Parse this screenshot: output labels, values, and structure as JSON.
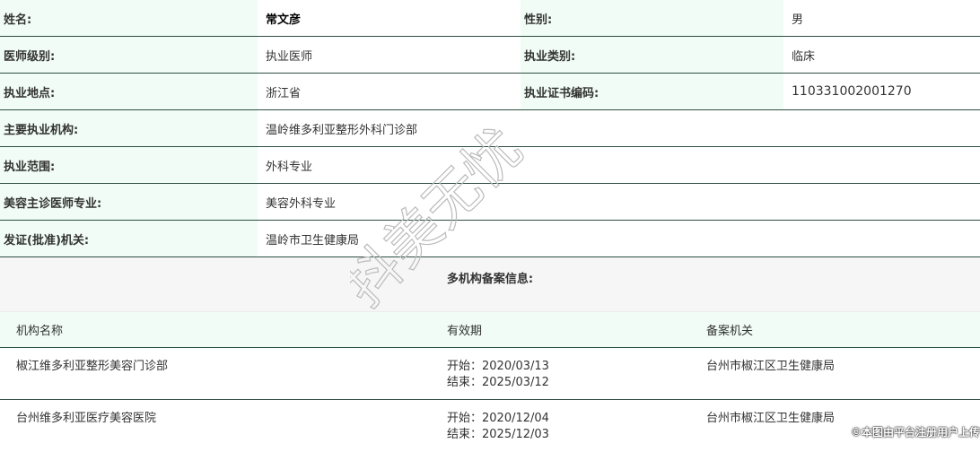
{
  "info": [
    {
      "label": "姓名:",
      "value": "常文彦",
      "label2": "性别:",
      "value2": "男"
    },
    {
      "label": "医师级别:",
      "value": "执业医师",
      "label2": "执业类别:",
      "value2": "临床"
    },
    {
      "label": "执业地点:",
      "value": "浙江省",
      "label2": "执业证书编码:",
      "value2": "110331002001270"
    }
  ],
  "wide": [
    {
      "label": "主要执业机构:",
      "value": "温岭维多利亚整形外科门诊部"
    },
    {
      "label": "执业范围:",
      "value": "外科专业"
    },
    {
      "label": "美容主诊医师专业:",
      "value": "美容外科专业"
    },
    {
      "label": "发证(批准)机关:",
      "value": "温岭市卫生健康局"
    }
  ],
  "multi_title": "多机构备案信息:",
  "table": {
    "headers": [
      "机构名称",
      "有效期",
      "备案机关"
    ],
    "rows": [
      {
        "name": "椒江维多利亚整形美容门诊部",
        "start": "开始：2020/03/13",
        "end": "结束：2025/03/12",
        "authority": "台州市椒江区卫生健康局"
      },
      {
        "name": "台州维多利亚医疗美容医院",
        "start": "开始：2020/12/04",
        "end": "结束：2025/12/03",
        "authority": "台州市椒江区卫生健康局"
      }
    ]
  },
  "watermark": "抖美无忧",
  "credit": "©本图由平台注册用户上传"
}
